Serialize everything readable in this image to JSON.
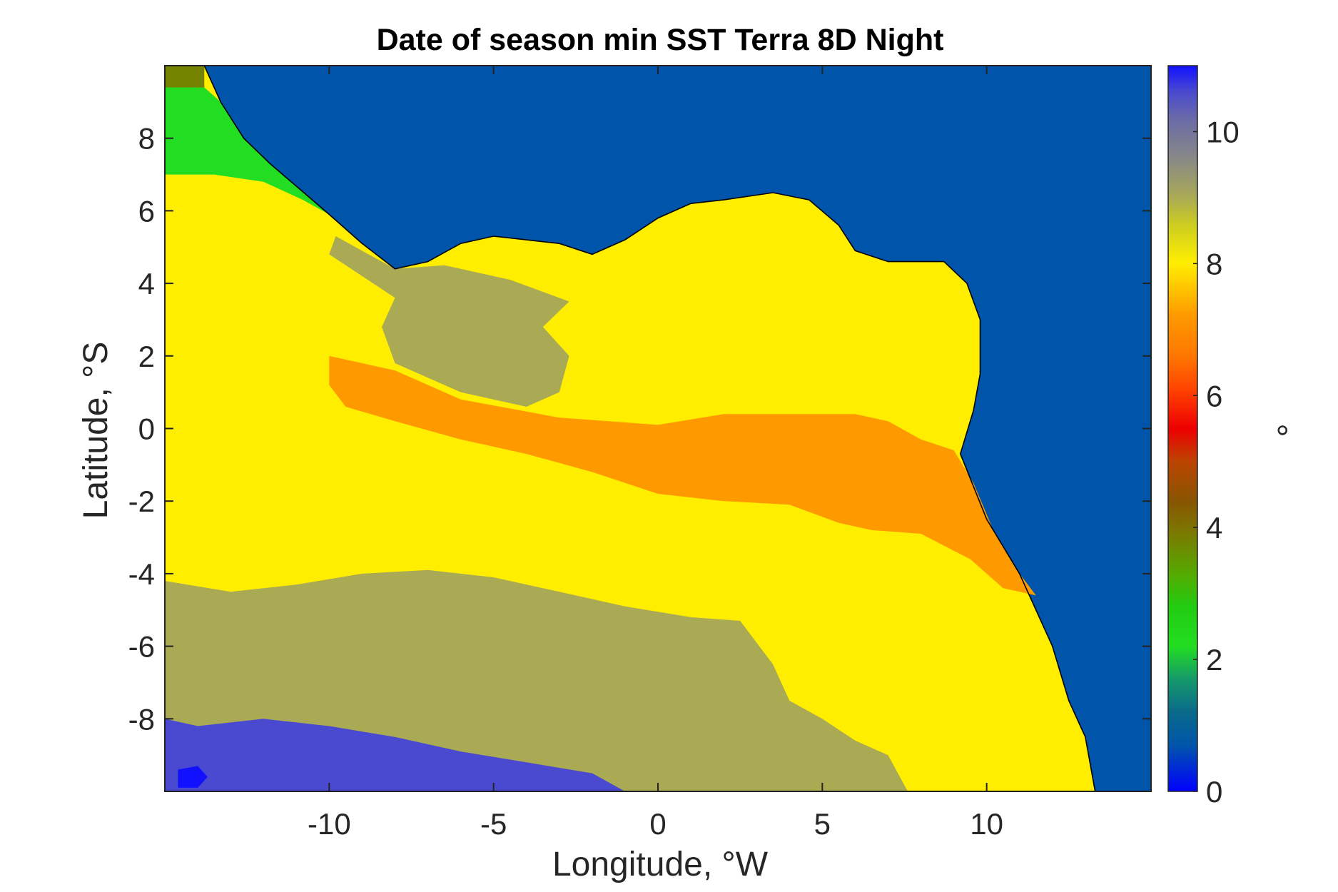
{
  "chart_data": {
    "type": "heatmap",
    "title": "Date of season min SST Terra 8D Night",
    "xlabel": "Longitude, °W",
    "ylabel": "Latitude, °S",
    "colorbar_label": "°",
    "xlim": [
      -15,
      15
    ],
    "ylim": [
      -10,
      10
    ],
    "clim": [
      0,
      11
    ],
    "xticks": [
      -10,
      -5,
      0,
      5,
      10
    ],
    "xtick_labels": [
      "-10",
      "-5",
      "0",
      "5",
      "10"
    ],
    "yticks": [
      -8,
      -6,
      -4,
      -2,
      0,
      2,
      4,
      6,
      8
    ],
    "ytick_labels": [
      "-8",
      "-6",
      "-4",
      "-2",
      "0",
      "2",
      "4",
      "6",
      "8"
    ],
    "cticks": [
      0,
      2,
      4,
      6,
      8,
      10
    ],
    "ctick_labels": [
      "0",
      "2",
      "4",
      "6",
      "8",
      "10"
    ],
    "grid": false,
    "land_value": 0.7,
    "colormap": [
      [
        0.0,
        "#0000ff"
      ],
      [
        0.7,
        "#0055aa"
      ],
      [
        1.2,
        "#0a6a8a"
      ],
      [
        1.7,
        "#15996a"
      ],
      [
        2.2,
        "#22dd22"
      ],
      [
        2.8,
        "#22cc11"
      ],
      [
        3.3,
        "#55aa00"
      ],
      [
        3.9,
        "#7a7a00"
      ],
      [
        4.4,
        "#885500"
      ],
      [
        5.0,
        "#bb4400"
      ],
      [
        5.5,
        "#ee0000"
      ],
      [
        6.1,
        "#ff4400"
      ],
      [
        6.6,
        "#ff7700"
      ],
      [
        7.2,
        "#ff9900"
      ],
      [
        7.7,
        "#ffcc00"
      ],
      [
        8.0,
        "#ffee00"
      ],
      [
        8.6,
        "#cccc22"
      ],
      [
        9.0,
        "#aaaa55"
      ],
      [
        9.6,
        "#888888"
      ],
      [
        10.2,
        "#6a6aa8"
      ],
      [
        10.6,
        "#4a4ad0"
      ],
      [
        11.0,
        "#1111ff"
      ]
    ],
    "land_outline": [
      [
        -13.8,
        10
      ],
      [
        -13.3,
        9.0
      ],
      [
        -12.6,
        8.0
      ],
      [
        -11.8,
        7.3
      ],
      [
        -10.9,
        6.6
      ],
      [
        -10.0,
        5.9
      ],
      [
        -9.0,
        5.1
      ],
      [
        -8.0,
        4.4
      ],
      [
        -7.0,
        4.6
      ],
      [
        -6.0,
        5.1
      ],
      [
        -5.0,
        5.3
      ],
      [
        -4.0,
        5.2
      ],
      [
        -3.0,
        5.1
      ],
      [
        -2.0,
        4.8
      ],
      [
        -1.0,
        5.2
      ],
      [
        0.0,
        5.8
      ],
      [
        1.0,
        6.2
      ],
      [
        2.0,
        6.3
      ],
      [
        3.5,
        6.5
      ],
      [
        4.6,
        6.3
      ],
      [
        5.5,
        5.6
      ],
      [
        6.0,
        4.9
      ],
      [
        7.0,
        4.6
      ],
      [
        8.2,
        4.6
      ],
      [
        8.7,
        4.6
      ],
      [
        9.4,
        4.0
      ],
      [
        9.8,
        3.0
      ],
      [
        9.8,
        1.5
      ],
      [
        9.6,
        0.5
      ],
      [
        9.2,
        -0.7
      ],
      [
        10.0,
        -2.5
      ],
      [
        11.0,
        -4.0
      ],
      [
        12.0,
        -6.0
      ],
      [
        12.5,
        -7.5
      ],
      [
        13.0,
        -8.5
      ],
      [
        13.3,
        -10
      ]
    ],
    "regions": [
      {
        "value": 3.8,
        "polygon": [
          [
            -15,
            10
          ],
          [
            -13.8,
            10
          ],
          [
            -13.8,
            9.4
          ],
          [
            -15,
            9.4
          ]
        ]
      },
      {
        "value": 2.2,
        "polygon": [
          [
            -15,
            9.4
          ],
          [
            -13.8,
            9.4
          ],
          [
            -13.3,
            9.0
          ],
          [
            -12.6,
            8.0
          ],
          [
            -11.8,
            7.3
          ],
          [
            -10.9,
            6.6
          ],
          [
            -10.0,
            5.9
          ],
          [
            -10.8,
            6.3
          ],
          [
            -12.0,
            6.8
          ],
          [
            -13.5,
            7.0
          ],
          [
            -15,
            7.0
          ]
        ]
      },
      {
        "value": 9.0,
        "polygon": [
          [
            -9.8,
            5.3
          ],
          [
            -8.0,
            4.4
          ],
          [
            -6.5,
            4.5
          ],
          [
            -4.5,
            4.1
          ],
          [
            -2.7,
            3.5
          ],
          [
            -3.5,
            2.8
          ],
          [
            -2.7,
            2.0
          ],
          [
            -3.0,
            1.0
          ],
          [
            -4.0,
            0.6
          ],
          [
            -6.0,
            1.0
          ],
          [
            -8.0,
            1.8
          ],
          [
            -8.4,
            2.8
          ],
          [
            -8.0,
            3.6
          ],
          [
            -9.0,
            4.2
          ],
          [
            -10.0,
            4.8
          ]
        ]
      },
      {
        "value": 7.2,
        "polygon": [
          [
            -10.0,
            2.0
          ],
          [
            -8.0,
            1.6
          ],
          [
            -6.0,
            0.8
          ],
          [
            -3.0,
            0.3
          ],
          [
            0.0,
            0.1
          ],
          [
            2.0,
            0.4
          ],
          [
            4.0,
            0.4
          ],
          [
            6.0,
            0.4
          ],
          [
            7.0,
            0.2
          ],
          [
            8.0,
            -0.3
          ],
          [
            9.0,
            -0.6
          ],
          [
            9.6,
            -1.5
          ],
          [
            10.2,
            -2.8
          ],
          [
            11.0,
            -4.0
          ],
          [
            11.5,
            -4.6
          ],
          [
            10.5,
            -4.4
          ],
          [
            9.5,
            -3.6
          ],
          [
            8.0,
            -2.9
          ],
          [
            6.5,
            -2.8
          ],
          [
            5.5,
            -2.6
          ],
          [
            4.0,
            -2.1
          ],
          [
            2.0,
            -2.0
          ],
          [
            0.0,
            -1.8
          ],
          [
            -2.0,
            -1.2
          ],
          [
            -4.0,
            -0.7
          ],
          [
            -6.0,
            -0.3
          ],
          [
            -8.0,
            0.2
          ],
          [
            -9.5,
            0.6
          ],
          [
            -10.0,
            1.2
          ]
        ]
      },
      {
        "value": 9.0,
        "polygon": [
          [
            -15,
            -4.2
          ],
          [
            -13.0,
            -4.5
          ],
          [
            -11.0,
            -4.3
          ],
          [
            -9.0,
            -4.0
          ],
          [
            -7.0,
            -3.9
          ],
          [
            -5.0,
            -4.1
          ],
          [
            -3.0,
            -4.5
          ],
          [
            -1.0,
            -4.9
          ],
          [
            1.0,
            -5.2
          ],
          [
            2.5,
            -5.3
          ],
          [
            3.5,
            -6.5
          ],
          [
            4.0,
            -7.5
          ],
          [
            5.0,
            -8.0
          ],
          [
            6.0,
            -8.6
          ],
          [
            7.0,
            -9.0
          ],
          [
            7.6,
            -10
          ],
          [
            -15,
            -10
          ]
        ]
      },
      {
        "value": 10.6,
        "polygon": [
          [
            -15,
            -8.0
          ],
          [
            -14.0,
            -8.2
          ],
          [
            -12.0,
            -8.0
          ],
          [
            -10.0,
            -8.2
          ],
          [
            -8.0,
            -8.5
          ],
          [
            -6.0,
            -8.9
          ],
          [
            -4.0,
            -9.2
          ],
          [
            -2.0,
            -9.5
          ],
          [
            -1.0,
            -10
          ],
          [
            -15,
            -10
          ]
        ]
      },
      {
        "value": 11.0,
        "polygon": [
          [
            -14.6,
            -9.4
          ],
          [
            -14.0,
            -9.3
          ],
          [
            -13.7,
            -9.6
          ],
          [
            -14.0,
            -9.9
          ],
          [
            -14.6,
            -9.9
          ]
        ]
      }
    ]
  }
}
